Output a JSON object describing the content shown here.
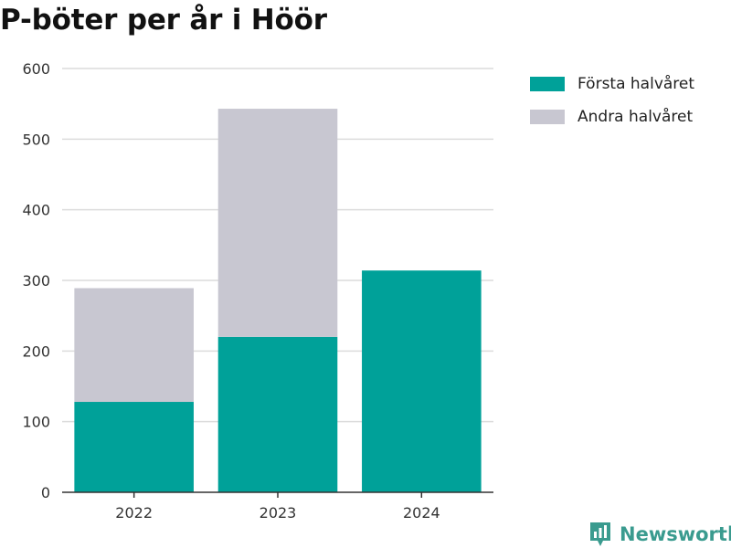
{
  "title": "P-böter per år i Höör",
  "brand": "Newsworthy",
  "colors": {
    "first_half": "#00a199",
    "second_half": "#c8c7d1",
    "grid": "#dcdcdc",
    "axis": "#333333",
    "brand": "#3a9b8f"
  },
  "legend": {
    "position": "top-right",
    "items": [
      {
        "label": "Första halvåret",
        "color": "#00a199"
      },
      {
        "label": "Andra halvåret",
        "color": "#c8c7d1"
      }
    ]
  },
  "chart_data": {
    "type": "bar",
    "stacked": true,
    "title": "P-böter per år i Höör",
    "xlabel": "",
    "ylabel": "",
    "categories": [
      "2022",
      "2023",
      "2024"
    ],
    "series": [
      {
        "name": "Första halvåret",
        "values": [
          128,
          220,
          314
        ]
      },
      {
        "name": "Andra halvåret",
        "values": [
          161,
          323,
          0
        ]
      }
    ],
    "ylim": [
      0,
      600
    ],
    "yticks": [
      0,
      100,
      200,
      300,
      400,
      500,
      600
    ],
    "grid": true,
    "legend_position": "top-right"
  }
}
